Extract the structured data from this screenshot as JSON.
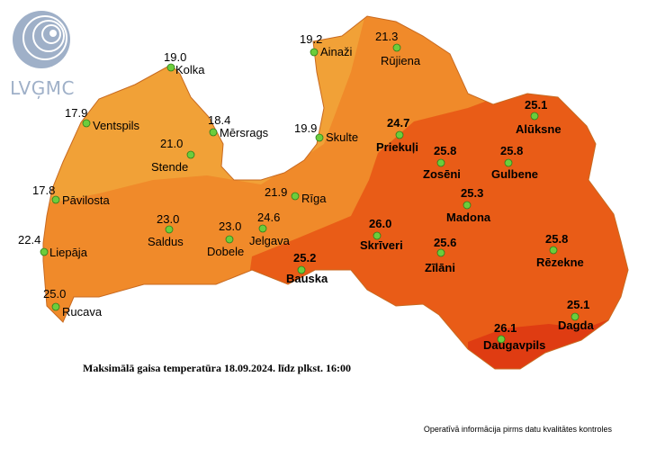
{
  "logo": {
    "text": "LVĢMC"
  },
  "caption": "Maksimālā gaisa temperatūra 18.09.2024. līdz plkst. 16:00",
  "footnote": "Operatīvā informācija pirms datu kvalitātes kontroles",
  "colors": {
    "zone_low": "#f1a137",
    "zone_mid": "#f08a2a",
    "zone_high": "#e95c17",
    "zone_max": "#df3c12",
    "marker": "#6ccd3c"
  },
  "stations": [
    {
      "name": "Kolka",
      "temp": "19.0",
      "bold": false
    },
    {
      "name": "Ventspils",
      "temp": "17.9",
      "bold": false
    },
    {
      "name": "Mērsrags",
      "temp": "18.4",
      "bold": false
    },
    {
      "name": "Stende",
      "temp": "21.0",
      "bold": false
    },
    {
      "name": "Pāvilosta",
      "temp": "17.8",
      "bold": false
    },
    {
      "name": "Liepāja",
      "temp": "22.4",
      "bold": false
    },
    {
      "name": "Saldus",
      "temp": "23.0",
      "bold": false
    },
    {
      "name": "Dobele",
      "temp": "23.0",
      "bold": false
    },
    {
      "name": "Jelgava",
      "temp": "24.6",
      "bold": false
    },
    {
      "name": "Rīga",
      "temp": "21.9",
      "bold": false
    },
    {
      "name": "Skulte",
      "temp": "19.9",
      "bold": false
    },
    {
      "name": "Ainaži",
      "temp": "19.2",
      "bold": false
    },
    {
      "name": "Rūjiena",
      "temp": "21.3",
      "bold": false
    },
    {
      "name": "Priekuļi",
      "temp": "24.7",
      "bold": true
    },
    {
      "name": "Alūksne",
      "temp": "25.1",
      "bold": true
    },
    {
      "name": "Zosēni",
      "temp": "25.8",
      "bold": true
    },
    {
      "name": "Gulbene",
      "temp": "25.8",
      "bold": true
    },
    {
      "name": "Madona",
      "temp": "25.3",
      "bold": true
    },
    {
      "name": "Skrīveri",
      "temp": "26.0",
      "bold": true
    },
    {
      "name": "Zīlāni",
      "temp": "25.6",
      "bold": true
    },
    {
      "name": "Rēzekne",
      "temp": "25.8",
      "bold": true
    },
    {
      "name": "Bauska",
      "temp": "25.2",
      "bold": true
    },
    {
      "name": "Rucava",
      "temp": "25.0",
      "bold": false
    },
    {
      "name": "Daugavpils",
      "temp": "26.1",
      "bold": true
    },
    {
      "name": "Dagda",
      "temp": "25.1",
      "bold": true
    }
  ]
}
